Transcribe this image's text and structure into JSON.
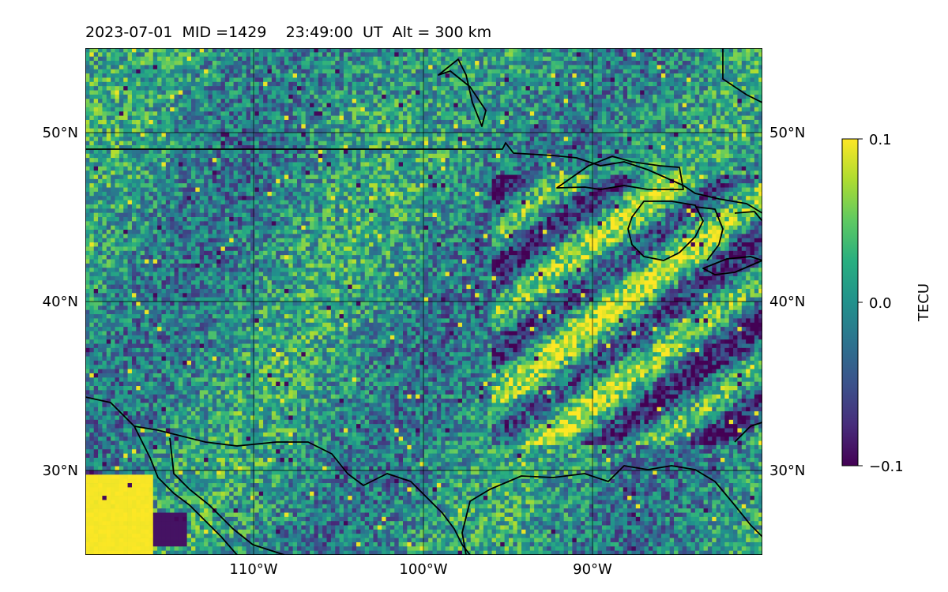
{
  "title": "2023-07-01  MID =1429    23:49:00  UT  Alt = 300 km",
  "map": {
    "lat_ticks": [
      {
        "label": "50°N"
      },
      {
        "label": "40°N"
      },
      {
        "label": "30°N"
      }
    ],
    "lon_ticks": [
      {
        "label": "110°W"
      },
      {
        "label": "100°W"
      },
      {
        "label": "90°W"
      }
    ],
    "extent": {
      "lon_min": -120,
      "lon_max": -80,
      "lat_min": 25,
      "lat_max": 55
    },
    "gridlines": true,
    "coastlines": true,
    "field": "detrended TEC perturbation"
  },
  "colorbar": {
    "label": "TECU",
    "colormap": "viridis",
    "ticks": [
      "0.1",
      "0.0",
      "−0.1"
    ],
    "vmin": -0.1,
    "vmax": 0.1
  }
}
